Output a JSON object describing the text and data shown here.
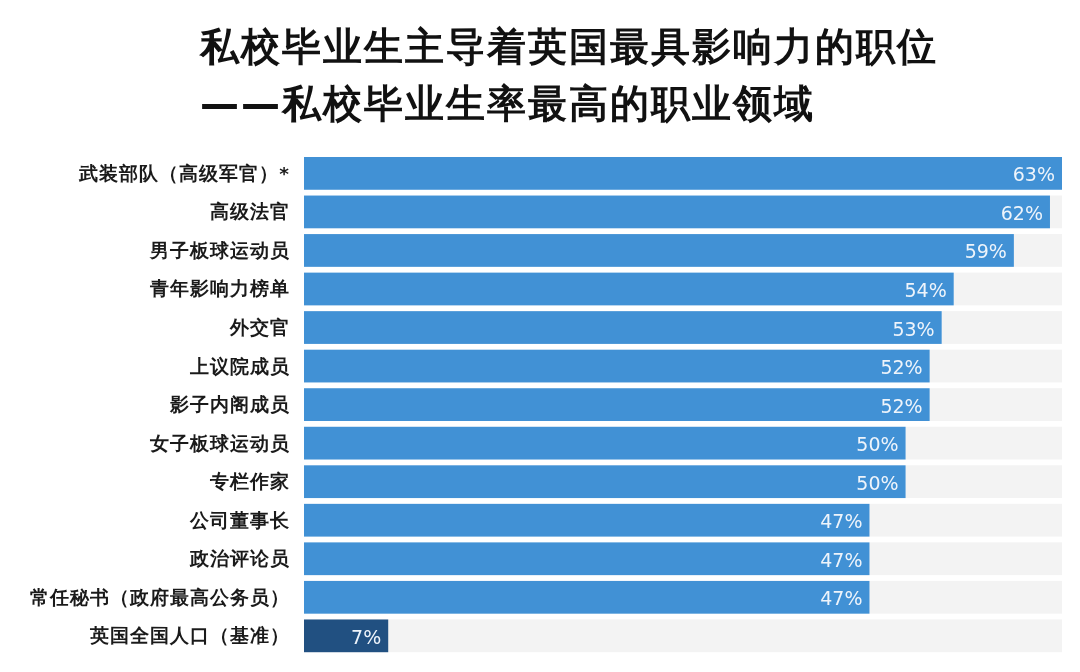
{
  "chart_data": {
    "type": "bar",
    "orientation": "horizontal",
    "title": "私校毕业生主导着英国最具影响力的职位",
    "subtitle": "——私校毕业生率最高的职业领域",
    "categories": [
      "武装部队（高级军官）*",
      "高级法官",
      "男子板球运动员",
      "青年影响力榜单",
      "外交官",
      "上议院成员",
      "影子内阁成员",
      "女子板球运动员",
      "专栏作家",
      "公司董事长",
      "政治评论员",
      "常任秘书（政府最高公务员）",
      "英国全国人口（基准）"
    ],
    "values": [
      63,
      62,
      59,
      54,
      53,
      52,
      52,
      50,
      50,
      47,
      47,
      47,
      7
    ],
    "colors": [
      "#4191d5",
      "#4191d5",
      "#4191d5",
      "#4191d5",
      "#4191d5",
      "#4191d5",
      "#4191d5",
      "#4191d5",
      "#4191d5",
      "#4191d5",
      "#4191d5",
      "#4191d5",
      "#215081"
    ],
    "value_labels": [
      "63%",
      "62%",
      "59%",
      "54%",
      "53%",
      "52%",
      "52%",
      "50%",
      "50%",
      "47%",
      "47%",
      "47%",
      "7%"
    ],
    "xlim": [
      0,
      63
    ],
    "tick_labels": "y"
  }
}
